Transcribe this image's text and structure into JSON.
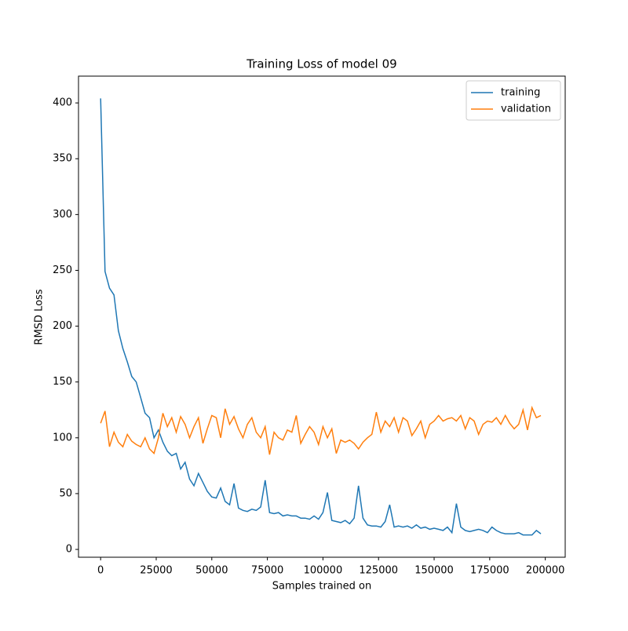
{
  "chart_data": {
    "type": "line",
    "title": "Training Loss of model 09",
    "xlabel": "Samples trained on",
    "ylabel": "RMSD Loss",
    "x": [
      0,
      2000,
      4000,
      6000,
      8000,
      10000,
      12000,
      14000,
      16000,
      18000,
      20000,
      22000,
      24000,
      26000,
      28000,
      30000,
      32000,
      34000,
      36000,
      38000,
      40000,
      42000,
      44000,
      46000,
      48000,
      50000,
      52000,
      54000,
      56000,
      58000,
      60000,
      62000,
      64000,
      66000,
      68000,
      70000,
      72000,
      74000,
      76000,
      78000,
      80000,
      82000,
      84000,
      86000,
      88000,
      90000,
      92000,
      94000,
      96000,
      98000,
      100000,
      102000,
      104000,
      106000,
      108000,
      110000,
      112000,
      114000,
      116000,
      118000,
      120000,
      122000,
      124000,
      126000,
      128000,
      130000,
      132000,
      134000,
      136000,
      138000,
      140000,
      142000,
      144000,
      146000,
      148000,
      150000,
      152000,
      154000,
      156000,
      158000,
      160000,
      162000,
      164000,
      166000,
      168000,
      170000,
      172000,
      174000,
      176000,
      178000,
      180000,
      182000,
      184000,
      186000,
      188000,
      190000,
      192000,
      194000,
      196000,
      198000
    ],
    "series": [
      {
        "name": "training",
        "color": "#1f77b4",
        "values": [
          404,
          249,
          234,
          228,
          196,
          180,
          168,
          155,
          150,
          136,
          122,
          118,
          100,
          107,
          96,
          88,
          84,
          86,
          72,
          78,
          63,
          57,
          68,
          60,
          52,
          47,
          46,
          55,
          43,
          40,
          59,
          37,
          35,
          34,
          36,
          35,
          38,
          62,
          33,
          32,
          33,
          30,
          31,
          30,
          30,
          28,
          28,
          27,
          30,
          27,
          33,
          51,
          26,
          25,
          24,
          26,
          23,
          28,
          57,
          28,
          22,
          21,
          21,
          20,
          25,
          40,
          20,
          21,
          20,
          21,
          19,
          22,
          19,
          20,
          18,
          19,
          18,
          17,
          20,
          15,
          41,
          20,
          17,
          16,
          17,
          18,
          17,
          15,
          20,
          17,
          15,
          14,
          14,
          14,
          15,
          13,
          13,
          13,
          17,
          14
        ]
      },
      {
        "name": "validation",
        "color": "#ff7f0e",
        "values": [
          113,
          124,
          92,
          105,
          96,
          92,
          103,
          97,
          94,
          92,
          100,
          90,
          86,
          100,
          122,
          110,
          118,
          105,
          119,
          112,
          100,
          110,
          118,
          95,
          108,
          120,
          118,
          100,
          126,
          112,
          119,
          108,
          100,
          112,
          118,
          105,
          100,
          110,
          85,
          105,
          100,
          98,
          107,
          105,
          120,
          95,
          103,
          110,
          105,
          94,
          110,
          100,
          108,
          86,
          98,
          96,
          98,
          95,
          90,
          96,
          100,
          103,
          123,
          105,
          115,
          110,
          118,
          105,
          118,
          115,
          102,
          108,
          115,
          100,
          112,
          115,
          120,
          115,
          117,
          118,
          115,
          120,
          108,
          118,
          115,
          103,
          112,
          115,
          114,
          118,
          112,
          120,
          113,
          108,
          112,
          125,
          107,
          127,
          118,
          120
        ]
      }
    ],
    "xlim": [
      -9950,
      208950
    ],
    "ylim": [
      -7,
      424
    ],
    "xticks": [
      0,
      25000,
      50000,
      75000,
      100000,
      125000,
      150000,
      175000,
      200000
    ],
    "yticks": [
      0,
      50,
      100,
      150,
      200,
      250,
      300,
      350,
      400
    ],
    "legend": "upper right"
  }
}
